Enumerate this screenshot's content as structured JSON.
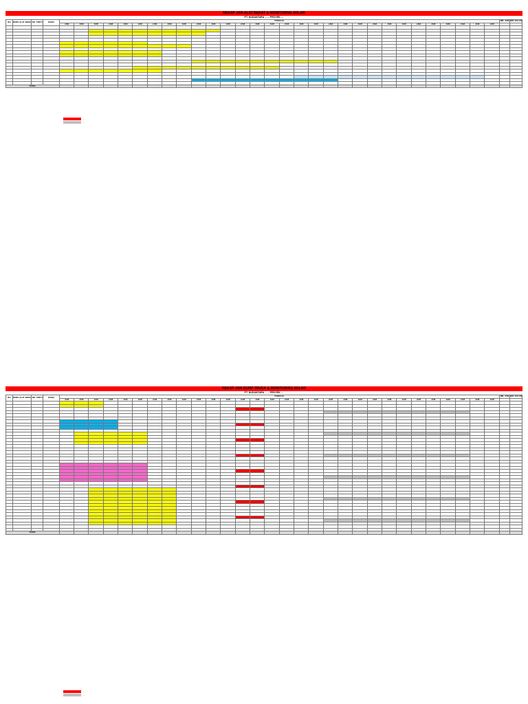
{
  "top_sheet": {
    "title": "REKAP JAM ALAT BERAT & MONITORING SOLAR",
    "subtitle": "PT. NUSANTARA … – PROYEK …",
    "header_label": "TANGGAL",
    "unit_label": "JAM",
    "columns": [
      "NO",
      "JENIS ALAT BERAT",
      "NO. PINTU",
      "NAMA"
    ],
    "summary_columns": [
      "JML JAM",
      "JML SOLAR"
    ],
    "rows": [
      {
        "status": ""
      },
      {
        "status": ""
      },
      {
        "status": ""
      },
      {
        "status": ""
      },
      {
        "status": ""
      },
      {
        "status": ""
      },
      {
        "status": ""
      },
      {
        "status": ""
      },
      {
        "status": ""
      },
      {
        "status": ""
      },
      {
        "status": ""
      },
      {
        "status": ""
      },
      {
        "status": ""
      },
      {
        "status": ""
      },
      {
        "status": ""
      },
      {
        "status": ""
      },
      {
        "status": ""
      },
      {
        "status": ""
      },
      {
        "status": ""
      }
    ],
    "total_label": "TOTAL"
  },
  "bottom_sheet": {
    "title": "REKAP JAM DUMP TRUCK & MONITORING SOLAR",
    "subtitle": "PT. NUSANTARA … – PROYEK …",
    "header_label": "TANGGAL",
    "unit_label": "JAM",
    "columns": [
      "NO",
      "JENIS ALAT BERAT",
      "NO. PINTU",
      "NAMA"
    ],
    "summary_columns": [
      "JML JAM",
      "JML SOLAR"
    ],
    "total_label": "TOTAL"
  },
  "legend": {
    "red_label": "…",
    "grey_label": "…"
  },
  "colors": {
    "title_bar": "#ff0000",
    "mobilization": "#ffff00",
    "transfer": "#c6e0f4",
    "repair": "#bfbfbf",
    "inactive": "#ff0000",
    "pink_band": "#ff66cc",
    "cyan_band": "#00b0f0"
  }
}
